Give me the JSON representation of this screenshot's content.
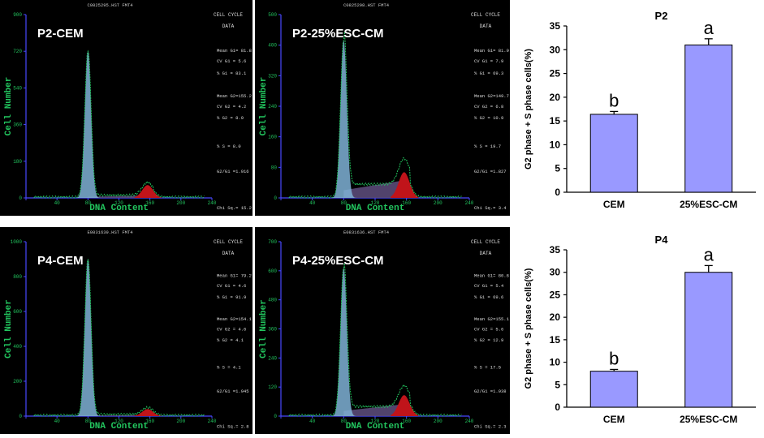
{
  "colors": {
    "bg": "#000000",
    "axis": "#4848ff",
    "green": "#22c55e",
    "fill_g1": "#7fb2d6",
    "fill_s": "#5a4a78",
    "fill_g2": "#c0141a",
    "bar": "#9999ff",
    "tag": "#ffffff"
  },
  "histograms": [
    {
      "id": "p2-cem",
      "header": "C0825295.HST FMT4",
      "label": "P2-CEM",
      "y_ticks": [
        "900",
        "720",
        "540",
        "360",
        "180",
        "0"
      ],
      "x_ticks": [
        "0",
        "40",
        "80",
        "120",
        "160",
        "200",
        "240"
      ],
      "ylabel": "Cell Number",
      "xlabel": "DNA Content",
      "side_title": [
        "CELL CYCLE",
        "DATA"
      ],
      "stats": [
        "Mean G1= 81.8",
        "CV G1 = 5.6",
        "% G1 = 83.1",
        "Mean G2=155.2",
        "CV G2 = 4.2",
        "% G2 = 8.9",
        "% S = 8.0",
        "G2/G1 =1.916",
        "Chi Sq.= 15.2"
      ],
      "peak_g1": 0.8,
      "peak_g2": 0.07,
      "s_level": 0.01
    },
    {
      "id": "p2-esc",
      "header": "C0825298.HST FMT4",
      "label": "P2-25%ESC-CM",
      "y_ticks": [
        "500",
        "400",
        "320",
        "240",
        "160",
        "80",
        "0"
      ],
      "x_ticks": [
        "0",
        "40",
        "80",
        "120",
        "160",
        "200",
        "240"
      ],
      "ylabel": "Cell Number",
      "xlabel": "DNA Content",
      "side_title": [
        "CELL CYCLE",
        "DATA"
      ],
      "stats": [
        "Mean G1= 81.9",
        "CV G1 = 7.9",
        "% G1 = 69.3",
        "Mean G2=149.7",
        "CV G2 = 6.8",
        "% G2 = 10.9",
        "% S = 19.7",
        "G2/G1 =1.827",
        "Chi Sq.= 3.4"
      ],
      "peak_g1": 0.86,
      "peak_g2": 0.14,
      "s_level": 0.07
    },
    {
      "id": "p4-cem",
      "header": "E0831639.HST FMT4",
      "label": "P4-CEM",
      "y_ticks": [
        "1000",
        "800",
        "600",
        "400",
        "200",
        "0"
      ],
      "x_ticks": [
        "0",
        "40",
        "80",
        "120",
        "160",
        "200",
        "240"
      ],
      "ylabel": "Cell Number",
      "xlabel": "DNA Content",
      "side_title": [
        "CELL CYCLE",
        "DATA"
      ],
      "stats": [
        "Mean G1= 79.2",
        "CV G1 = 4.6",
        "% G1 = 91.9",
        "Mean G2=154.1",
        "CV G2 = 4.6",
        "% G2 = 4.1",
        "% S = 4.1",
        "G2/G1 =1.945",
        "Chi Sq.= 2.8"
      ],
      "peak_g1": 0.9,
      "peak_g2": 0.04,
      "s_level": 0.005
    },
    {
      "id": "p4-esc",
      "header": "E0831636.HST FMT4",
      "label": "P4-25%ESC-CM",
      "y_ticks": [
        "700",
        "600",
        "480",
        "360",
        "240",
        "120",
        "0"
      ],
      "x_ticks": [
        "0",
        "40",
        "80",
        "120",
        "160",
        "200",
        "240"
      ],
      "ylabel": "Cell Number",
      "xlabel": "DNA Content",
      "side_title": [
        "CELL CYCLE",
        "DATA"
      ],
      "stats": [
        "Mean G1= 80.8",
        "CV G1 = 5.4",
        "% G1 = 69.6",
        "Mean G2=155.1",
        "CV G2 = 5.6",
        "% G2 = 12.9",
        "% S = 17.5",
        "G2/G1 =1.938",
        "Chi Sq.= 2.3"
      ],
      "peak_g1": 0.85,
      "peak_g2": 0.12,
      "s_level": 0.05
    }
  ],
  "chart_data": [
    {
      "type": "bar",
      "title": "P2",
      "categories": [
        "CEM",
        "25%ESC-CM"
      ],
      "values": [
        16.4,
        31.0
      ],
      "errors": [
        0.6,
        1.3
      ],
      "letters": [
        "b",
        "a"
      ],
      "ylabel": "G2 phase + S phase cells(%)",
      "ylim": [
        0,
        35
      ],
      "yticks": [
        "0",
        "5",
        "10",
        "15",
        "20",
        "25",
        "30",
        "35"
      ]
    },
    {
      "type": "bar",
      "title": "P4",
      "categories": [
        "CEM",
        "25%ESC-CM"
      ],
      "values": [
        8.0,
        30.0
      ],
      "errors": [
        0.4,
        1.5
      ],
      "letters": [
        "b",
        "a"
      ],
      "ylabel": "G2 phase + S phase cells(%)",
      "ylim": [
        0,
        35
      ],
      "yticks": [
        "0",
        "5",
        "10",
        "15",
        "20",
        "25",
        "30",
        "35"
      ]
    }
  ]
}
